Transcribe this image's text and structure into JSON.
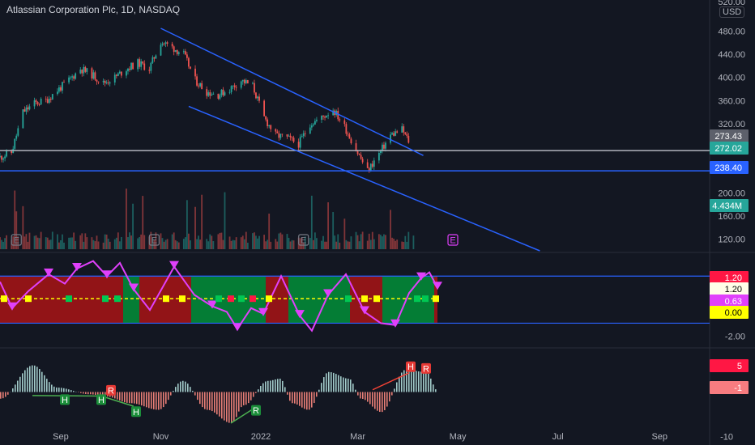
{
  "header": {
    "title": "Atlassian Corporation Plc, 1D, NASDAQ",
    "currency": "USD"
  },
  "colors": {
    "background": "#131722",
    "up": "#26a69a",
    "down": "#ef5350",
    "channel": "#2962ff",
    "level_line": "#2962ff",
    "magenta": "#e040fb",
    "yellow": "#ffff00",
    "green": "#00c853",
    "red_marker": "#ff1744"
  },
  "chart_data": [
    {
      "type": "candlestick",
      "title": "Atlassian Corporation Plc, 1D, NASDAQ",
      "price_axis_ticks": [
        "480.00",
        "440.00",
        "400.00",
        "360.00",
        "320.00",
        "200.00",
        "160.00",
        "120.00"
      ],
      "top_partial_tick": "520.00",
      "ylim": [
        100,
        520
      ],
      "price_tags": [
        {
          "value": "273.43",
          "style": "gray"
        },
        {
          "value": "272.02",
          "style": "green"
        },
        {
          "value": "238.40",
          "style": "blue"
        },
        {
          "value": "4.434M",
          "style": "teal"
        }
      ],
      "x_axis_labels": [
        "Sep",
        "Nov",
        "2022",
        "Mar",
        "May",
        "Jul",
        "Sep"
      ],
      "horizontal_levels": [
        273.43,
        238.4
      ],
      "channel_upper": {
        "from": [
          "2021-11-01",
          485
        ],
        "to": [
          "2022-04-10",
          265
        ]
      },
      "channel_lower": {
        "from": [
          "2021-11-18",
          350
        ],
        "to": [
          "2022-06-20",
          100
        ]
      },
      "price_path": [
        [
          "2021-07-26",
          262
        ],
        [
          "2021-08-02",
          270
        ],
        [
          "2021-08-09",
          340
        ],
        [
          "2021-08-16",
          355
        ],
        [
          "2021-08-23",
          360
        ],
        [
          "2021-08-30",
          378
        ],
        [
          "2021-09-06",
          395
        ],
        [
          "2021-09-13",
          415
        ],
        [
          "2021-09-20",
          405
        ],
        [
          "2021-09-27",
          390
        ],
        [
          "2021-10-04",
          400
        ],
        [
          "2021-10-11",
          415
        ],
        [
          "2021-10-18",
          425
        ],
        [
          "2021-10-25",
          415
        ],
        [
          "2021-11-01",
          462
        ],
        [
          "2021-11-08",
          452
        ],
        [
          "2021-11-15",
          440
        ],
        [
          "2021-11-22",
          395
        ],
        [
          "2021-11-29",
          375
        ],
        [
          "2021-12-06",
          370
        ],
        [
          "2021-12-13",
          380
        ],
        [
          "2021-12-20",
          395
        ],
        [
          "2021-12-27",
          385
        ],
        [
          "2022-01-03",
          330
        ],
        [
          "2022-01-10",
          300
        ],
        [
          "2022-01-17",
          295
        ],
        [
          "2022-01-24",
          285
        ],
        [
          "2022-01-31",
          320
        ],
        [
          "2022-02-07",
          330
        ],
        [
          "2022-02-14",
          345
        ],
        [
          "2022-02-21",
          315
        ],
        [
          "2022-02-28",
          275
        ],
        [
          "2022-03-07",
          238
        ],
        [
          "2022-03-14",
          268
        ],
        [
          "2022-03-21",
          300
        ],
        [
          "2022-03-28",
          310
        ],
        [
          "2022-04-04",
          275
        ]
      ],
      "earnings_markers": [
        {
          "date": "2021-08-05",
          "label": "E"
        },
        {
          "date": "2021-10-28",
          "label": "E"
        },
        {
          "date": "2022-01-27",
          "label": "E"
        },
        {
          "date": "2022-04-28",
          "label": "E",
          "future": true
        }
      ]
    },
    {
      "type": "line",
      "name": "oscillator",
      "axis_ticks": [
        "-2.00"
      ],
      "tags": [
        {
          "value": "1.20",
          "style": "red"
        },
        {
          "value": "1.20",
          "style": "white"
        },
        {
          "value": "0.63",
          "style": "magenta"
        },
        {
          "value": "0.00",
          "style": "yellow"
        }
      ],
      "levels": [
        1.2,
        -1.3
      ],
      "ylim": [
        -2.4,
        2.2
      ]
    },
    {
      "type": "bar",
      "name": "histogram",
      "axis_ticks": [
        "-10"
      ],
      "tags": [
        {
          "value": "5",
          "style": "red"
        },
        {
          "value": "-1",
          "style": "pink"
        }
      ],
      "pivot_labels": [
        "H",
        "H",
        "H",
        "R",
        "R",
        "H",
        "R"
      ],
      "ylim": [
        -11,
        9
      ]
    }
  ]
}
